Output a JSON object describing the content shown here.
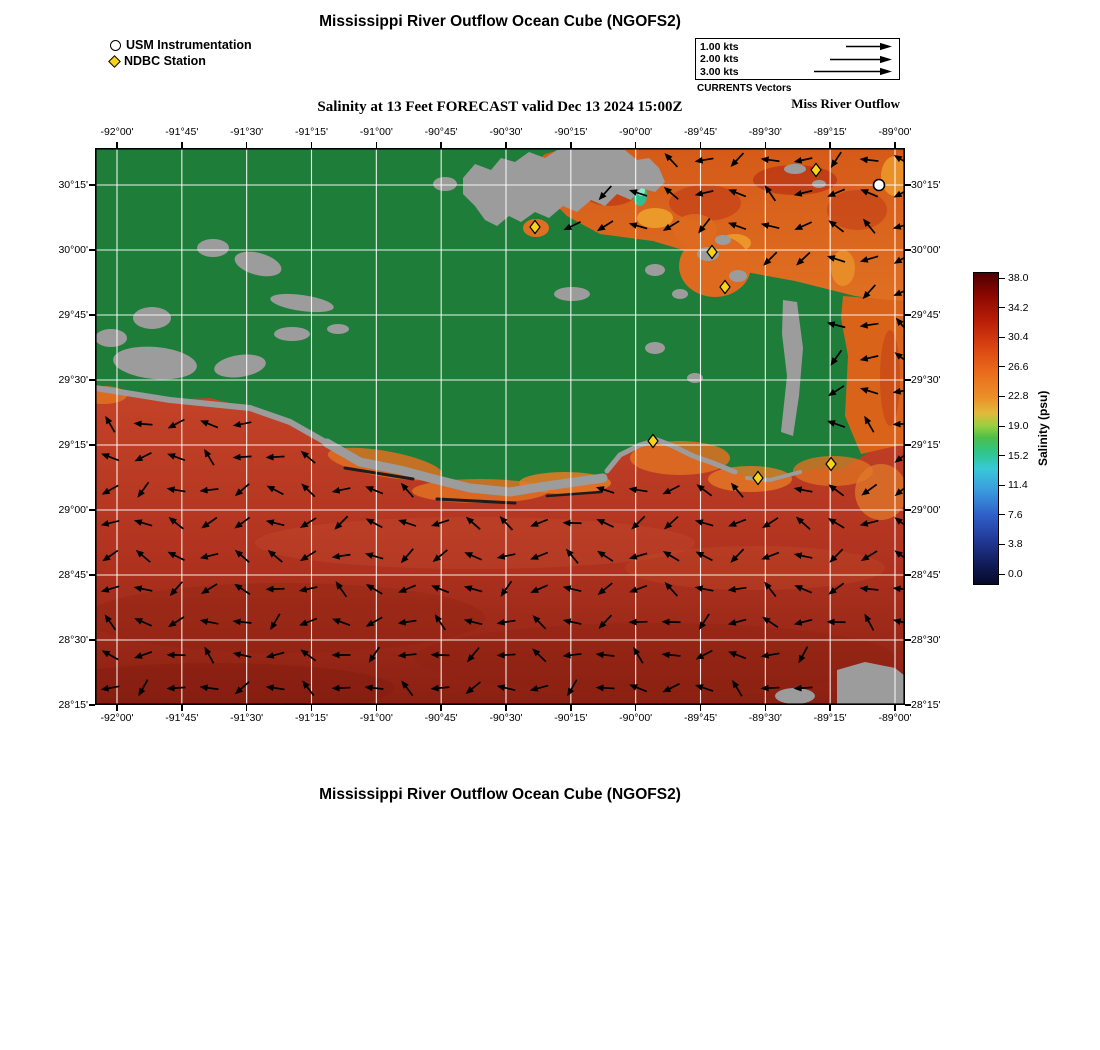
{
  "titles": {
    "top": "Mississippi River Outflow Ocean Cube (NGOFS2)",
    "subtitle": "Salinity at 13 Feet FORECAST valid Dec 13 2024 15:00Z",
    "bottom": "Mississippi River Outflow Ocean Cube (NGOFS2)"
  },
  "legend": {
    "usm": "USM Instrumentation",
    "ndbc": "NDBC Station"
  },
  "currents_legend": {
    "caption": "CURRENTS Vectors",
    "region": "Miss River Outflow",
    "rows": [
      {
        "label": "1.00 kts",
        "length": 46
      },
      {
        "label": "2.00 kts",
        "length": 62
      },
      {
        "label": "3.00 kts",
        "length": 78
      }
    ]
  },
  "axes": {
    "lon_ticks": [
      "-92°00'",
      "-91°45'",
      "-91°30'",
      "-91°15'",
      "-91°00'",
      "-90°45'",
      "-90°30'",
      "-90°15'",
      "-90°00'",
      "-89°45'",
      "-89°30'",
      "-89°15'",
      "-89°00'"
    ],
    "lat_ticks": [
      "30°15'",
      "30°00'",
      "29°45'",
      "29°30'",
      "29°15'",
      "29°00'",
      "28°45'",
      "28°30'",
      "28°15'"
    ]
  },
  "colorbar": {
    "label": "Salinity (psu)",
    "ticks": [
      "38.0",
      "34.2",
      "30.4",
      "26.6",
      "22.8",
      "19.0",
      "15.2",
      "11.4",
      "7.6",
      "3.8",
      "0.0"
    ],
    "gradient": [
      "#4d0000 0%",
      "#8a0700 7%",
      "#bb2008 16%",
      "#dd4a12 25%",
      "#e96c1c 32%",
      "#eb8f28 40%",
      "#e2b93a 45%",
      "#9ccf40 49%",
      "#4bbf48 53%",
      "#2ec690 58%",
      "#38c8d8 63%",
      "#3a9ade 70%",
      "#2f5ec8 78%",
      "#20348f 87%",
      "#101b55 94%",
      "#060a28 100%"
    ]
  },
  "stations": {
    "usm": [
      [
        784,
        37
      ]
    ],
    "ndbc": [
      [
        440,
        79
      ],
      [
        721,
        22
      ],
      [
        617,
        104
      ],
      [
        630,
        139
      ],
      [
        558,
        293
      ],
      [
        663,
        330
      ],
      [
        736,
        316
      ]
    ]
  },
  "map_colors": {
    "land_green": "#1f7d3a",
    "land_gray": "#9c9c9c",
    "ocean_red": "#b23420",
    "coastal_orange": "#df7022",
    "marker_yellow": "#f7d417",
    "gridline_white": "#ffffff",
    "vector_black": "#000000"
  }
}
